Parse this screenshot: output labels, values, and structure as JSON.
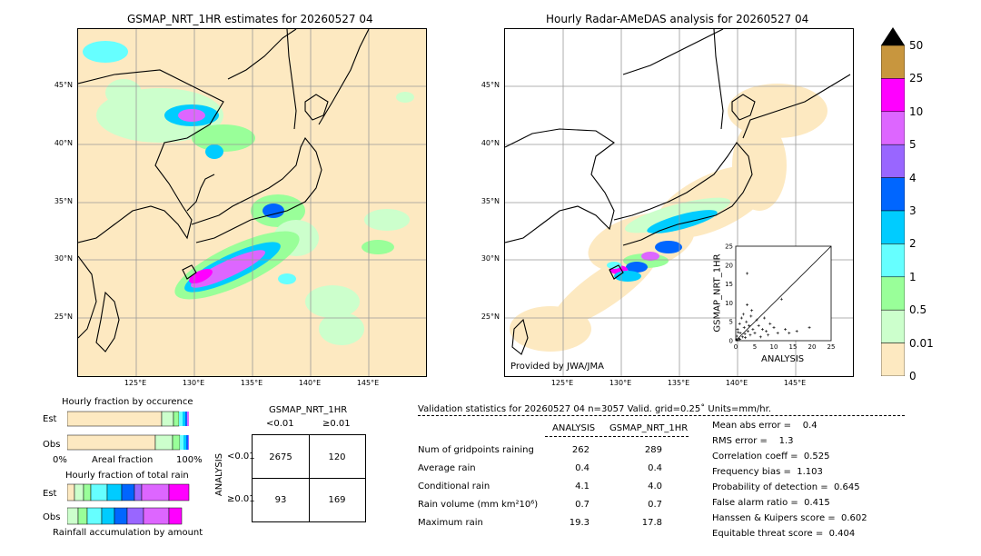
{
  "left_map": {
    "title": "GSMAP_NRT_1HR estimates for 20260527 04",
    "lat_ticks": [
      "45°N",
      "40°N",
      "35°N",
      "30°N",
      "25°N"
    ],
    "lon_ticks": [
      "125°E",
      "130°E",
      "135°E",
      "140°E",
      "145°E"
    ]
  },
  "right_map": {
    "title": "Hourly Radar-AMeDAS analysis for 20260527 04",
    "credit": "Provided by JWA/JMA",
    "lat_ticks": [
      "45°N",
      "40°N",
      "35°N",
      "30°N",
      "25°N"
    ],
    "lon_ticks": [
      "125°E",
      "130°E",
      "135°E",
      "140°E",
      "145°E"
    ]
  },
  "colorbar": {
    "labels": [
      "50",
      "25",
      "10",
      "5",
      "4",
      "3",
      "2",
      "1",
      "0.5",
      "0.01",
      "0"
    ],
    "colors": [
      "#c8963e",
      "#ff00ff",
      "#dd66ff",
      "#9966ff",
      "#0066ff",
      "#00ccff",
      "#66ffff",
      "#99ff99",
      "#ccffcc",
      "#fde9c1"
    ]
  },
  "scatter": {
    "ylabel": "GSMAP_NRT_1HR",
    "xlabel": "ANALYSIS",
    "ticks": [
      "0",
      "5",
      "10",
      "15",
      "20",
      "25"
    ]
  },
  "chart_data": {
    "type": "scatter",
    "xlabel": "ANALYSIS",
    "ylabel": "GSMAP_NRT_1HR",
    "xlim": [
      0,
      25
    ],
    "ylim": [
      0,
      25
    ],
    "points": [
      [
        0.3,
        1.2
      ],
      [
        0.5,
        3.0
      ],
      [
        0.8,
        0.5
      ],
      [
        1.0,
        4.5
      ],
      [
        1.2,
        2.0
      ],
      [
        1.5,
        6.0
      ],
      [
        1.8,
        1.0
      ],
      [
        2.0,
        7.0
      ],
      [
        2.2,
        3.5
      ],
      [
        2.5,
        0.8
      ],
      [
        2.8,
        5.0
      ],
      [
        3.0,
        9.5
      ],
      [
        3.2,
        2.5
      ],
      [
        3.5,
        4.0
      ],
      [
        3.8,
        1.5
      ],
      [
        4.0,
        6.5
      ],
      [
        4.2,
        8.0
      ],
      [
        4.5,
        3.0
      ],
      [
        5.0,
        2.0
      ],
      [
        5.5,
        5.5
      ],
      [
        6.0,
        4.0
      ],
      [
        6.5,
        1.0
      ],
      [
        7.0,
        3.0
      ],
      [
        7.5,
        6.0
      ],
      [
        8.0,
        2.5
      ],
      [
        8.5,
        1.5
      ],
      [
        9.0,
        4.5
      ],
      [
        10.0,
        3.5
      ],
      [
        11.0,
        2.0
      ],
      [
        12.0,
        11.0
      ],
      [
        13.0,
        3.0
      ],
      [
        14.0,
        2.0
      ],
      [
        16.0,
        2.5
      ],
      [
        19.3,
        3.5
      ],
      [
        3.0,
        17.8
      ],
      [
        0.2,
        0.3
      ],
      [
        0.4,
        0.2
      ],
      [
        1.1,
        0.4
      ],
      [
        0.6,
        2.2
      ],
      [
        2.4,
        1.8
      ]
    ]
  },
  "occurrence": {
    "title": "Hourly fraction by occurence",
    "row_est": "Est",
    "row_obs": "Obs",
    "axis_left": "0%",
    "axis_mid": "Areal fraction",
    "axis_right": "100%"
  },
  "total_rain": {
    "title": "Hourly fraction of total rain",
    "row_est": "Est",
    "row_obs": "Obs",
    "caption": "Rainfall accumulation by amount"
  },
  "contingency": {
    "title": "GSMAP_NRT_1HR",
    "col1": "<0.01",
    "col2": "≥0.01",
    "side": "ANALYSIS",
    "row1": "<0.01",
    "row2": "≥0.01",
    "a": "2675",
    "b": "120",
    "c": "93",
    "d": "169"
  },
  "validation": {
    "header": "Validation statistics for 20260527 04  n=3057 Valid. grid=0.25˚ Units=mm/hr.",
    "col_analysis": "ANALYSIS",
    "col_gsmap": "GSMAP_NRT_1HR",
    "rows": [
      {
        "label": "Num of gridpoints raining",
        "analysis": "262",
        "gsmap": "289"
      },
      {
        "label": "Average rain",
        "analysis": "0.4",
        "gsmap": "0.4"
      },
      {
        "label": "Conditional rain",
        "analysis": "4.1",
        "gsmap": "4.0"
      },
      {
        "label": "Rain volume (mm km²10⁶)",
        "analysis": "0.7",
        "gsmap": "0.7"
      },
      {
        "label": "Maximum rain",
        "analysis": "19.3",
        "gsmap": "17.8"
      }
    ],
    "scores": [
      "Mean abs error =    0.4",
      "RMS error =    1.3",
      "Correlation coeff =  0.525",
      "Frequency bias =  1.103",
      "Probability of detection =  0.645",
      "False alarm ratio =  0.415",
      "Hanssen & Kuipers score =  0.602",
      "Equitable threat score =  0.404"
    ]
  }
}
